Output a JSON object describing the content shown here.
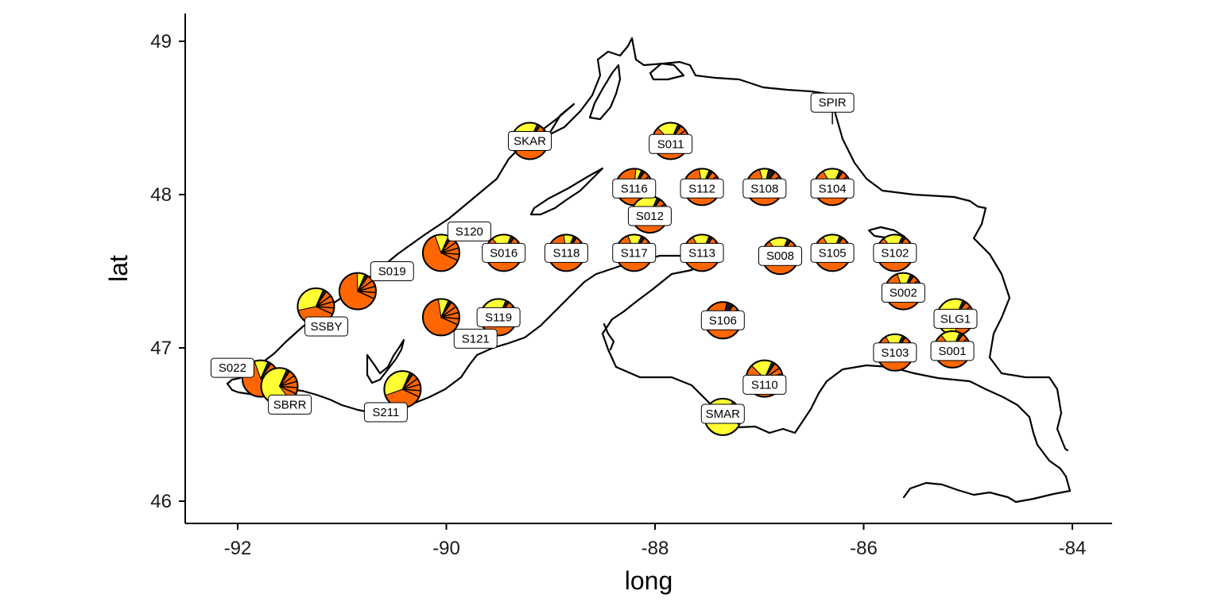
{
  "chart_data": {
    "type": "map-pie",
    "title": "",
    "xlabel": "long",
    "ylabel": "lat",
    "xlim": [
      -92.5,
      -83.6
    ],
    "ylim": [
      45.85,
      49.15
    ],
    "x_ticks": [
      -92,
      -90,
      -88,
      -86,
      -84
    ],
    "y_ticks": [
      46,
      47,
      48,
      49
    ],
    "grid": false,
    "colors": {
      "orange": "#ff6600",
      "yellow": "#ffff33",
      "dark": "#1a1a1a"
    },
    "sites": [
      {
        "name": "SPIR",
        "long": -86.3,
        "lat": 48.5,
        "fractions": [],
        "label_long": -86.3,
        "label_lat": 48.6
      },
      {
        "name": "SKAR",
        "long": -89.2,
        "lat": 48.35,
        "fractions": [
          0.55,
          0.42,
          0.03
        ],
        "label_long": -89.2,
        "label_lat": 48.35
      },
      {
        "name": "S011",
        "long": -87.85,
        "lat": 48.35,
        "fractions": [
          0.78,
          0.19,
          0.03
        ],
        "label_long": -87.85,
        "label_lat": 48.33
      },
      {
        "name": "S116",
        "long": -88.2,
        "lat": 48.05,
        "fractions": [
          0.92,
          0.05,
          0.03
        ],
        "label_long": -88.2,
        "label_lat": 48.04
      },
      {
        "name": "S112",
        "long": -87.55,
        "lat": 48.05,
        "fractions": [
          0.88,
          0.09,
          0.03
        ],
        "label_long": -87.55,
        "label_lat": 48.04
      },
      {
        "name": "S108",
        "long": -86.95,
        "lat": 48.05,
        "fractions": [
          0.86,
          0.08,
          0.06
        ],
        "label_long": -86.95,
        "label_lat": 48.04
      },
      {
        "name": "S104",
        "long": -86.3,
        "lat": 48.05,
        "fractions": [
          0.82,
          0.15,
          0.03
        ],
        "label_long": -86.3,
        "label_lat": 48.04
      },
      {
        "name": "S012",
        "long": -88.05,
        "lat": 47.87,
        "fractions": [
          0.72,
          0.25,
          0.03
        ],
        "label_long": -88.05,
        "label_lat": 47.86
      },
      {
        "name": "S120",
        "long": -90.05,
        "lat": 47.62,
        "fractions": [
          0.85,
          0.12,
          0.03
        ],
        "label_long": -89.78,
        "label_lat": 47.76
      },
      {
        "name": "S016",
        "long": -89.45,
        "lat": 47.62,
        "fractions": [
          0.8,
          0.17,
          0.03
        ],
        "label_long": -89.45,
        "label_lat": 47.62
      },
      {
        "name": "S118",
        "long": -88.85,
        "lat": 47.62,
        "fractions": [
          0.88,
          0.09,
          0.03
        ],
        "label_long": -88.85,
        "label_lat": 47.62
      },
      {
        "name": "S117",
        "long": -88.2,
        "lat": 47.62,
        "fractions": [
          0.85,
          0.12,
          0.03
        ],
        "label_long": -88.2,
        "label_lat": 47.62
      },
      {
        "name": "S113",
        "long": -87.55,
        "lat": 47.62,
        "fractions": [
          0.82,
          0.15,
          0.03
        ],
        "label_long": -87.55,
        "label_lat": 47.62
      },
      {
        "name": "S008",
        "long": -86.8,
        "lat": 47.6,
        "fractions": [
          0.8,
          0.17,
          0.03
        ],
        "label_long": -86.8,
        "label_lat": 47.6
      },
      {
        "name": "S105",
        "long": -86.3,
        "lat": 47.62,
        "fractions": [
          0.82,
          0.15,
          0.03
        ],
        "label_long": -86.3,
        "label_lat": 47.62
      },
      {
        "name": "S102",
        "long": -85.7,
        "lat": 47.62,
        "fractions": [
          0.8,
          0.17,
          0.03
        ],
        "label_long": -85.7,
        "label_lat": 47.62
      },
      {
        "name": "S019",
        "long": -90.85,
        "lat": 47.37,
        "fractions": [
          0.9,
          0.07,
          0.03
        ],
        "label_long": -90.52,
        "label_lat": 47.5
      },
      {
        "name": "S002",
        "long": -85.62,
        "lat": 47.37,
        "fractions": [
          0.85,
          0.12,
          0.03
        ],
        "label_long": -85.62,
        "label_lat": 47.36
      },
      {
        "name": "SSBY",
        "long": -91.25,
        "lat": 47.27,
        "fractions": [
          0.62,
          0.35,
          0.03
        ],
        "label_long": -91.15,
        "label_lat": 47.14
      },
      {
        "name": "S121",
        "long": -90.05,
        "lat": 47.2,
        "fractions": [
          0.88,
          0.09,
          0.03
        ],
        "label_long": -89.72,
        "label_lat": 47.06
      },
      {
        "name": "S119",
        "long": -89.5,
        "lat": 47.2,
        "fractions": [
          0.65,
          0.32,
          0.03
        ],
        "label_long": -89.5,
        "label_lat": 47.2
      },
      {
        "name": "S106",
        "long": -87.35,
        "lat": 47.18,
        "fractions": [
          0.94,
          0.0,
          0.06
        ],
        "label_long": -87.35,
        "label_lat": 47.18
      },
      {
        "name": "SLG1",
        "long": -85.12,
        "lat": 47.2,
        "fractions": [
          0.4,
          0.57,
          0.03
        ],
        "label_long": -85.12,
        "label_lat": 47.19
      },
      {
        "name": "S103",
        "long": -85.7,
        "lat": 46.97,
        "fractions": [
          0.82,
          0.15,
          0.03
        ],
        "label_long": -85.7,
        "label_lat": 46.97
      },
      {
        "name": "S001",
        "long": -85.15,
        "lat": 46.99,
        "fractions": [
          0.8,
          0.17,
          0.03
        ],
        "label_long": -85.15,
        "label_lat": 46.98
      },
      {
        "name": "S022",
        "long": -91.78,
        "lat": 46.8,
        "fractions": [
          0.85,
          0.12,
          0.03
        ],
        "label_long": -92.05,
        "label_lat": 46.87
      },
      {
        "name": "SBRR",
        "long": -91.6,
        "lat": 46.75,
        "fractions": [
          0.3,
          0.67,
          0.03
        ],
        "label_long": -91.5,
        "label_lat": 46.63
      },
      {
        "name": "S110",
        "long": -86.95,
        "lat": 46.8,
        "fractions": [
          0.78,
          0.19,
          0.03
        ],
        "label_long": -86.95,
        "label_lat": 46.76
      },
      {
        "name": "S211",
        "long": -90.42,
        "lat": 46.73,
        "fractions": [
          0.6,
          0.37,
          0.03
        ],
        "label_long": -90.58,
        "label_lat": 46.58
      },
      {
        "name": "SMAR",
        "long": -87.35,
        "lat": 46.55,
        "fractions": [
          0.02,
          0.98,
          0.0
        ],
        "label_long": -87.35,
        "label_lat": 46.57
      }
    ]
  }
}
